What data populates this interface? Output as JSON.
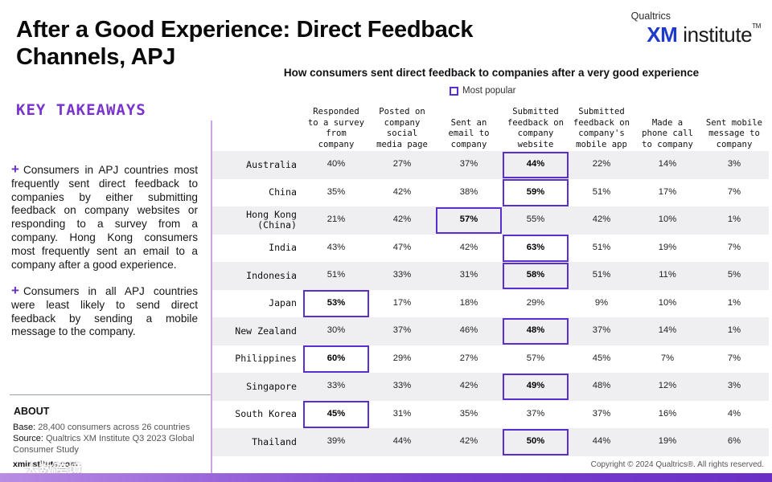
{
  "title": "After a Good Experience: Direct Feedback Channels, APJ",
  "logo": {
    "small": "Qualtrics",
    "xm": "XM",
    "rest": " institute",
    "tm": "TM"
  },
  "key_takeaways": {
    "heading": "KEY TAKEAWAYS",
    "items": [
      "Consumers in APJ countries most frequently sent direct feedback to companies by either submitting feedback on company websites or responding to a survey from a company. Hong Kong consumers most frequently sent an email to a company after a good experience.",
      "Consumers in all APJ countries were least likely to send direct feedback by sending a mobile message to the company."
    ]
  },
  "about": {
    "heading": "ABOUT",
    "base_label": "Base:",
    "base_text": "28,400 consumers across 26 countries",
    "source_label": "Source:",
    "source_text": "Qualtrics XM Institute Q3 2023 Global Consumer Study",
    "site": "xminstitute.com",
    "watermark": "大数跨境"
  },
  "copyright": "Copyright © 2024 Qualtrics®. All rights reserved.",
  "colors": {
    "accent": "#5a2fd0",
    "purple_text": "#7a33cc",
    "shade": "#efeff2"
  },
  "chart_data": {
    "type": "table",
    "title": "How consumers sent direct feedback to companies after a very good experience",
    "legend": "Most popular",
    "columns": [
      "Responded to a survey from company",
      "Posted on company social media page",
      "Sent an email to company",
      "Submitted feedback on company website",
      "Submitted feedback on company's mobile app",
      "Made a phone call to company",
      "Sent mobile message to company"
    ],
    "column_lines": [
      [
        "Responded",
        "to a survey",
        "from",
        "company"
      ],
      [
        "Posted on",
        "company",
        "social",
        "media page"
      ],
      [
        "Sent an",
        "email to",
        "company"
      ],
      [
        "Submitted",
        "feedback on",
        "company",
        "website"
      ],
      [
        "Submitted",
        "feedback on",
        "company's",
        "mobile app"
      ],
      [
        "Made a",
        "phone call",
        "to company"
      ],
      [
        "Sent mobile",
        "message to",
        "company"
      ]
    ],
    "rows": [
      {
        "country": "Australia",
        "values": [
          "40%",
          "27%",
          "37%",
          "44%",
          "22%",
          "14%",
          "3%"
        ],
        "most_popular": 3
      },
      {
        "country": "China",
        "values": [
          "35%",
          "42%",
          "38%",
          "59%",
          "51%",
          "17%",
          "7%"
        ],
        "most_popular": 3
      },
      {
        "country": "Hong Kong (China)",
        "country_lines": [
          "Hong Kong",
          "(China)"
        ],
        "values": [
          "21%",
          "42%",
          "57%",
          "55%",
          "42%",
          "10%",
          "1%"
        ],
        "most_popular": 2
      },
      {
        "country": "India",
        "values": [
          "43%",
          "47%",
          "42%",
          "63%",
          "51%",
          "19%",
          "7%"
        ],
        "most_popular": 3
      },
      {
        "country": "Indonesia",
        "values": [
          "51%",
          "33%",
          "31%",
          "58%",
          "51%",
          "11%",
          "5%"
        ],
        "most_popular": 3
      },
      {
        "country": "Japan",
        "values": [
          "53%",
          "17%",
          "18%",
          "29%",
          "9%",
          "10%",
          "1%"
        ],
        "most_popular": 0
      },
      {
        "country": "New Zealand",
        "values": [
          "30%",
          "37%",
          "46%",
          "48%",
          "37%",
          "14%",
          "1%"
        ],
        "most_popular": 3
      },
      {
        "country": "Philippines",
        "values": [
          "60%",
          "29%",
          "27%",
          "57%",
          "45%",
          "7%",
          "7%"
        ],
        "most_popular": 0
      },
      {
        "country": "Singapore",
        "values": [
          "33%",
          "33%",
          "42%",
          "49%",
          "48%",
          "12%",
          "3%"
        ],
        "most_popular": 3
      },
      {
        "country": "South Korea",
        "values": [
          "45%",
          "31%",
          "35%",
          "37%",
          "37%",
          "16%",
          "4%"
        ],
        "most_popular": 0
      },
      {
        "country": "Thailand",
        "values": [
          "39%",
          "44%",
          "42%",
          "50%",
          "44%",
          "19%",
          "6%"
        ],
        "most_popular": 3
      }
    ]
  }
}
